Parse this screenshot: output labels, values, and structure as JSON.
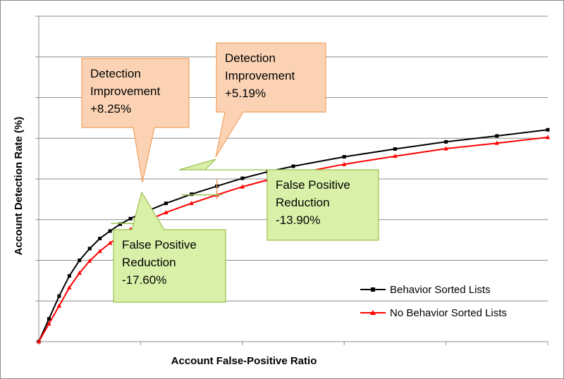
{
  "chart_data": {
    "type": "line",
    "title": "",
    "xlabel": "Account False-Positive Ratio",
    "ylabel": "Account Detection Rate (%)",
    "xlim": [
      0,
      1
    ],
    "ylim": [
      0,
      1
    ],
    "x_ticks": 5,
    "y_ticks": 8,
    "grid": {
      "horizontal": true,
      "vertical": false
    },
    "legend_position": "bottom-right",
    "series": [
      {
        "name": "Behavior Sorted Lists",
        "color": "#000000",
        "marker": "square",
        "points": [
          [
            0.0,
            0.0
          ],
          [
            0.02,
            0.07
          ],
          [
            0.04,
            0.14
          ],
          [
            0.06,
            0.202
          ],
          [
            0.08,
            0.25
          ],
          [
            0.1,
            0.286
          ],
          [
            0.12,
            0.317
          ],
          [
            0.14,
            0.34
          ],
          [
            0.16,
            0.361
          ],
          [
            0.18,
            0.378
          ],
          [
            0.2,
            0.393
          ],
          [
            0.25,
            0.425
          ],
          [
            0.3,
            0.453
          ],
          [
            0.35,
            0.478
          ],
          [
            0.4,
            0.502
          ],
          [
            0.45,
            0.522
          ],
          [
            0.5,
            0.539
          ],
          [
            0.6,
            0.568
          ],
          [
            0.7,
            0.592
          ],
          [
            0.8,
            0.614
          ],
          [
            0.9,
            0.632
          ],
          [
            1.0,
            0.651
          ]
        ]
      },
      {
        "name": "No Behavior Sorted Lists",
        "color": "#ff0000",
        "marker": "triangle",
        "points": [
          [
            0.0,
            0.0
          ],
          [
            0.02,
            0.055
          ],
          [
            0.04,
            0.11
          ],
          [
            0.06,
            0.166
          ],
          [
            0.08,
            0.211
          ],
          [
            0.1,
            0.248
          ],
          [
            0.12,
            0.278
          ],
          [
            0.14,
            0.303
          ],
          [
            0.16,
            0.325
          ],
          [
            0.18,
            0.345
          ],
          [
            0.2,
            0.363
          ],
          [
            0.25,
            0.397
          ],
          [
            0.3,
            0.425
          ],
          [
            0.35,
            0.451
          ],
          [
            0.4,
            0.476
          ],
          [
            0.45,
            0.497
          ],
          [
            0.5,
            0.515
          ],
          [
            0.6,
            0.545
          ],
          [
            0.7,
            0.57
          ],
          [
            0.8,
            0.593
          ],
          [
            0.9,
            0.61
          ],
          [
            1.0,
            0.628
          ]
        ]
      }
    ],
    "annotations": [
      {
        "kind": "detection",
        "lines": [
          "Detection",
          "Improvement",
          "+8.25%"
        ],
        "fill": "#fbd3b4",
        "stroke": "#f0a060",
        "anchor": [
          0.2,
          0.393
        ]
      },
      {
        "kind": "detection",
        "lines": [
          "Detection",
          "Improvement",
          "+5.19%"
        ],
        "fill": "#fbd3b4",
        "stroke": "#f0a060",
        "anchor": [
          0.35,
          0.451
        ]
      },
      {
        "kind": "false-positive",
        "lines": [
          "False Positive",
          "Reduction",
          "-17.60%"
        ],
        "fill": "#d9f0a8",
        "stroke": "#9bc14e",
        "anchor": [
          0.2,
          0.363
        ]
      },
      {
        "kind": "false-positive",
        "lines": [
          "False Positive",
          "Reduction",
          "-13.90%"
        ],
        "fill": "#d9f0a8",
        "stroke": "#9bc14e",
        "anchor": [
          0.35,
          0.451
        ]
      }
    ]
  }
}
